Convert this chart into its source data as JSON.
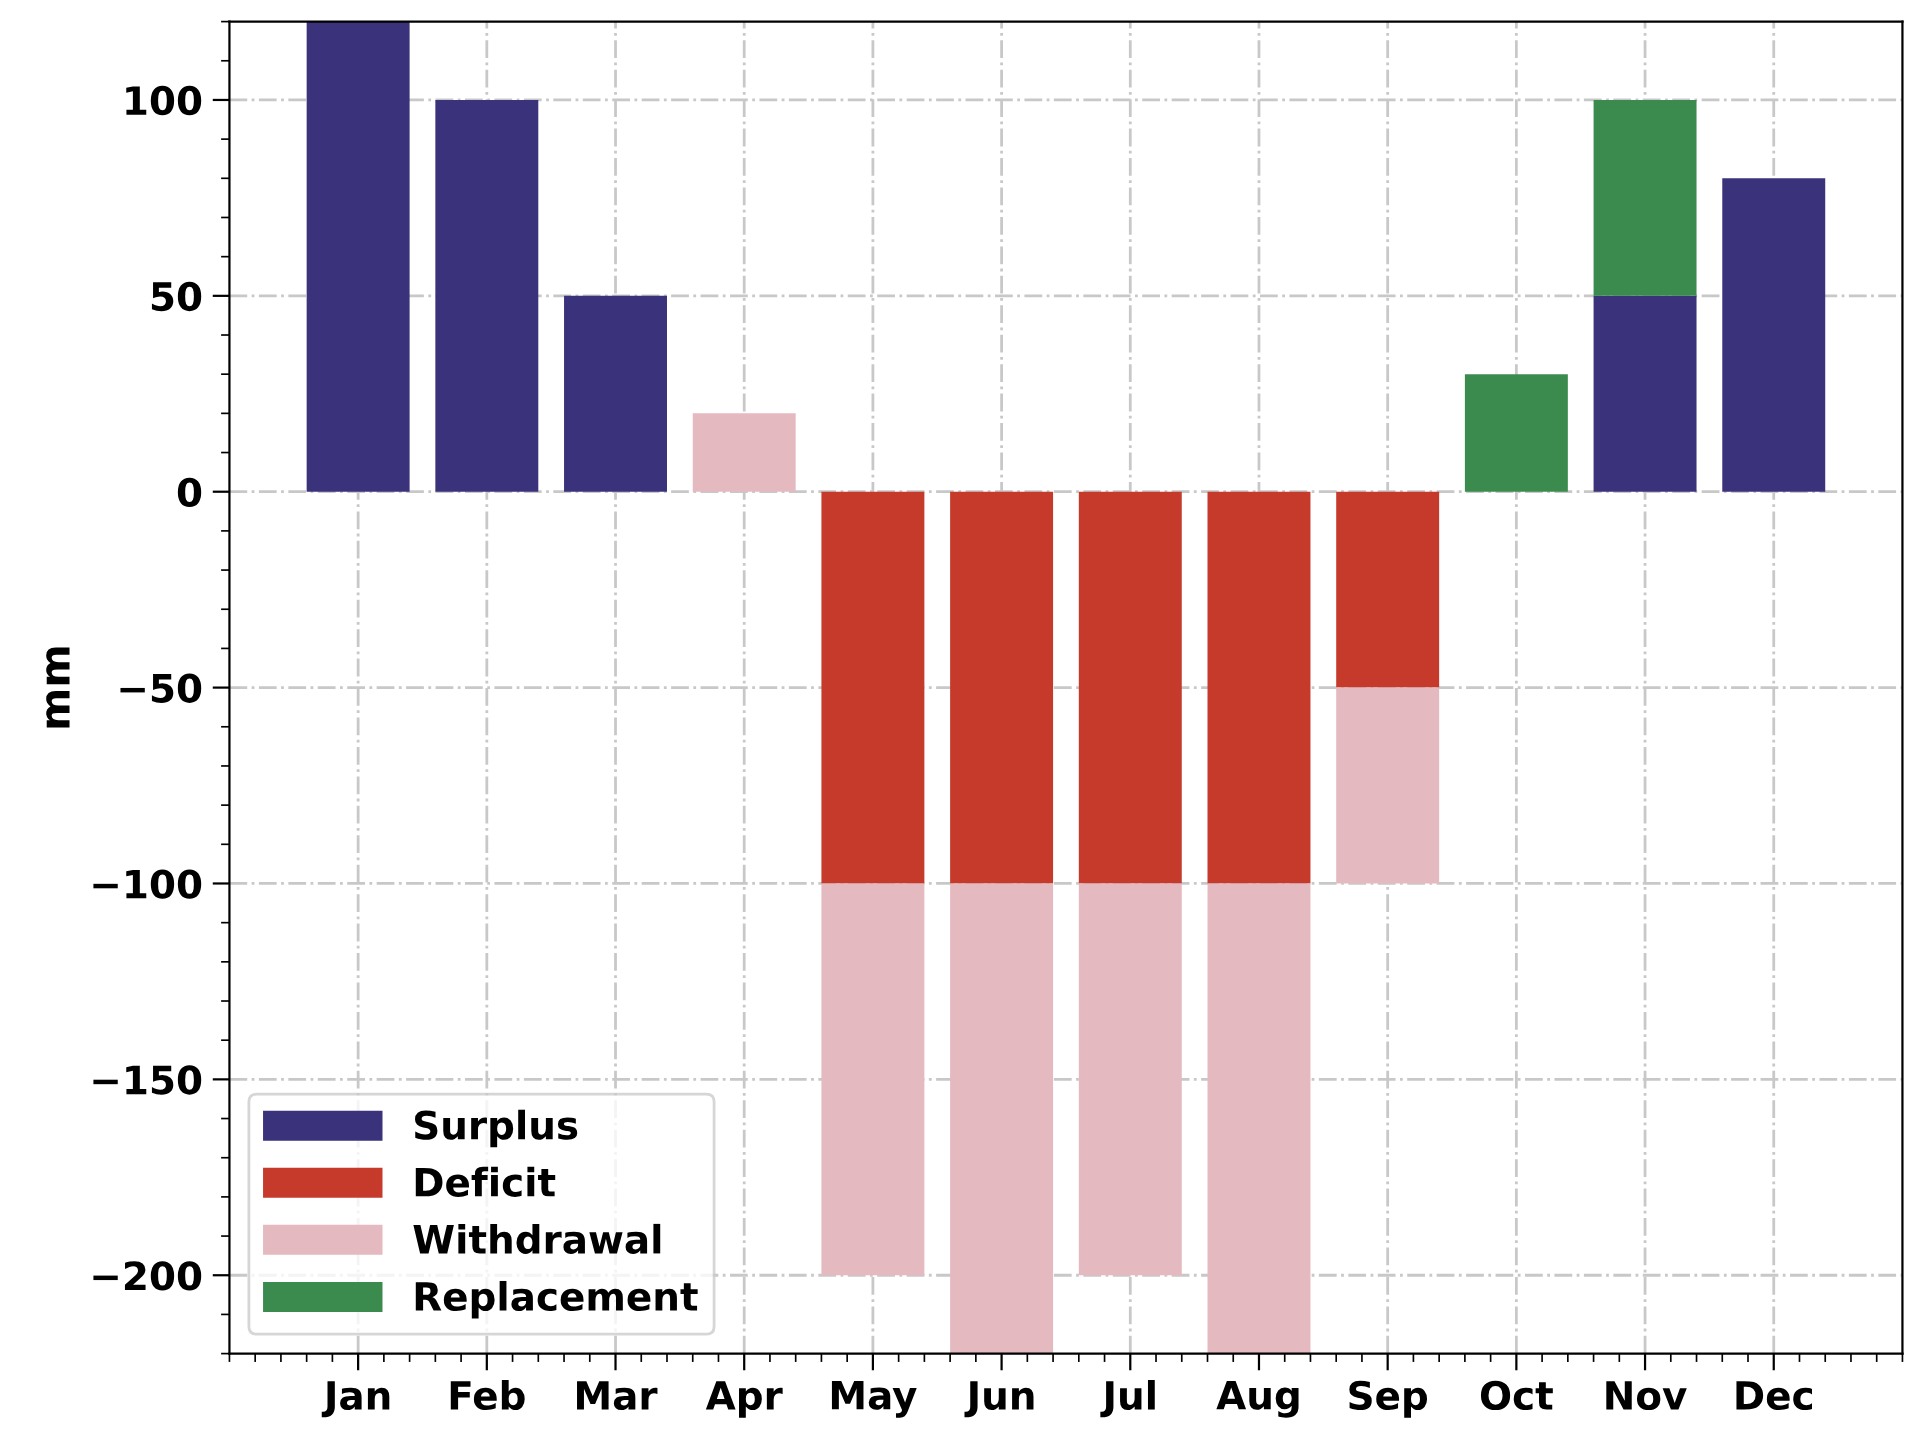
{
  "chart_data": {
    "type": "bar",
    "stacked": true,
    "ylabel": "mm",
    "categories": [
      "Jan",
      "Feb",
      "Mar",
      "Apr",
      "May",
      "Jun",
      "Jul",
      "Aug",
      "Sep",
      "Oct",
      "Nov",
      "Dec"
    ],
    "series": [
      {
        "name": "Surplus",
        "color": "#3a327a",
        "values": [
          120,
          100,
          50,
          0,
          0,
          0,
          0,
          0,
          0,
          0,
          50,
          80
        ]
      },
      {
        "name": "Deficit",
        "color": "#c63a2c",
        "values": [
          0,
          0,
          0,
          0,
          -100,
          -100,
          -100,
          -100,
          -50,
          0,
          0,
          0
        ]
      },
      {
        "name": "Withdrawal",
        "color": "#e5b9c0",
        "values": [
          0,
          0,
          0,
          20,
          -100,
          -120,
          -100,
          -120,
          -50,
          0,
          0,
          0
        ]
      },
      {
        "name": "Replacement",
        "color": "#3b8b4e",
        "values": [
          0,
          0,
          0,
          0,
          0,
          0,
          0,
          0,
          0,
          30,
          50,
          0
        ]
      }
    ],
    "ylim": [
      -220,
      120
    ],
    "yticks": [
      -200,
      -150,
      -100,
      -50,
      0,
      50,
      100
    ],
    "grid": true,
    "legend": "bottom left"
  }
}
